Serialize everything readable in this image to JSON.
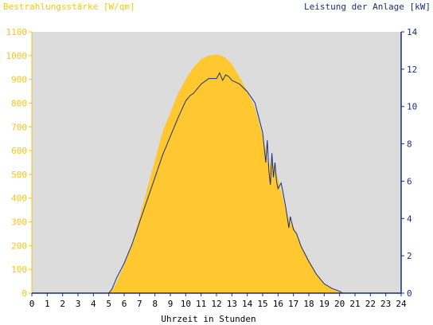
{
  "chart_data": {
    "type": "area",
    "title_left": "Bestrahlungsstärke [W/qm]",
    "title_right": "Leistung der Anlage [kW]",
    "xlabel": "Uhrzeit in Stunden",
    "x_ticks": [
      "0",
      "1",
      "2",
      "3",
      "4",
      "5",
      "6",
      "7",
      "8",
      "9",
      "10",
      "11",
      "12",
      "13",
      "14",
      "15",
      "16",
      "17",
      "18",
      "19",
      "20",
      "21",
      "22",
      "23",
      "24"
    ],
    "xlim": [
      0,
      24
    ],
    "y_left": {
      "ticks": [
        "0",
        "100",
        "200",
        "300",
        "400",
        "500",
        "600",
        "700",
        "800",
        "900",
        "1000",
        "1100"
      ],
      "ylim": [
        0,
        1100
      ],
      "color": "#ffc830",
      "tick_color": "#f5c518"
    },
    "y_right": {
      "ticks": [
        "0",
        "2",
        "4",
        "6",
        "8",
        "10",
        "12",
        "14"
      ],
      "ylim": [
        0,
        14
      ],
      "color": "#1a2f78"
    },
    "plot_background": "#dcdcdc",
    "grid": false,
    "series": [
      {
        "axis": "left",
        "x": [
          0,
          4.8,
          5.0,
          5.3,
          5.6,
          6.0,
          6.5,
          7.0,
          7.5,
          8.0,
          8.5,
          9.0,
          9.5,
          10.0,
          10.5,
          11.0,
          11.5,
          12.0,
          12.3,
          12.6,
          13.0,
          13.5,
          14.0,
          14.5,
          15.0,
          15.2,
          15.4,
          15.6,
          15.8,
          16.0,
          16.2,
          16.4,
          16.6,
          16.8,
          17.0,
          17.2,
          17.5,
          18.0,
          18.5,
          19.0,
          19.3,
          19.6,
          20.0,
          20.2,
          24
        ],
        "values": [
          0,
          0,
          5,
          20,
          60,
          120,
          200,
          320,
          440,
          560,
          680,
          760,
          840,
          900,
          950,
          985,
          1000,
          1005,
          1000,
          990,
          965,
          910,
          850,
          780,
          660,
          600,
          530,
          560,
          520,
          480,
          430,
          380,
          330,
          300,
          280,
          250,
          200,
          140,
          80,
          40,
          25,
          15,
          5,
          0,
          0
        ]
      },
      {
        "axis": "right",
        "x": [
          0,
          5.0,
          5.2,
          5.5,
          6.0,
          6.5,
          7.0,
          7.5,
          8.0,
          8.5,
          9.0,
          9.5,
          10.0,
          10.3,
          10.5,
          11.0,
          11.5,
          12.0,
          12.2,
          12.4,
          12.6,
          12.8,
          13.0,
          13.5,
          14.0,
          14.5,
          15.0,
          15.2,
          15.3,
          15.4,
          15.5,
          15.6,
          15.7,
          15.8,
          15.9,
          16.0,
          16.2,
          16.3,
          16.5,
          16.7,
          16.8,
          17.0,
          17.2,
          17.5,
          18.0,
          18.5,
          19.0,
          19.5,
          20.0,
          20.2,
          24
        ],
        "values": [
          0,
          0,
          0.2,
          0.8,
          1.6,
          2.6,
          3.8,
          5.0,
          6.2,
          7.4,
          8.4,
          9.4,
          10.3,
          10.6,
          10.7,
          11.2,
          11.5,
          11.5,
          11.8,
          11.4,
          11.7,
          11.6,
          11.4,
          11.2,
          10.8,
          10.2,
          8.6,
          7.0,
          8.2,
          6.6,
          5.8,
          7.5,
          6.2,
          7.0,
          6.0,
          5.6,
          5.9,
          5.5,
          4.6,
          3.5,
          4.1,
          3.4,
          3.2,
          2.5,
          1.7,
          1.0,
          0.5,
          0.25,
          0.1,
          0,
          0
        ]
      }
    ]
  }
}
